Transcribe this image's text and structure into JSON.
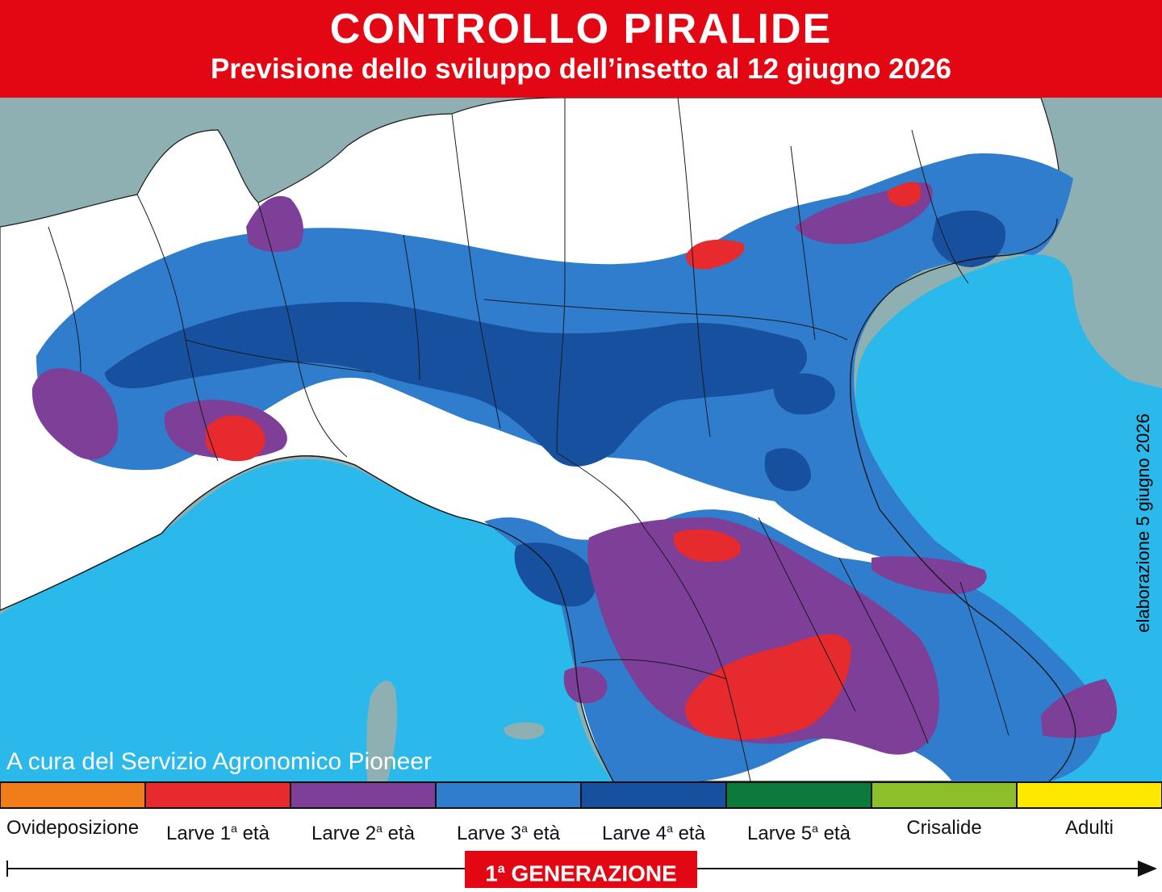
{
  "header": {
    "title": "CONTROLLO PIRALIDE",
    "subtitle": "Previsione dello sviluppo dell’insetto al 12 giugno 2026"
  },
  "map": {
    "colors": {
      "sea": "#2bb9ec",
      "foreign_land": "#8fb0b3",
      "no_data": "#ffffff",
      "borders": "#1a1a1a"
    }
  },
  "credit": "A cura del Servizio Agronomico Pioneer",
  "elaboration_note": "elaborazione 5 giugno 2026",
  "legend": [
    {
      "stage": "Ovideposizione",
      "ordinal": "",
      "suffix": "",
      "color": "#f07d19"
    },
    {
      "stage": "Larve 1",
      "ordinal": "a",
      "suffix": " età",
      "color": "#e62a2d"
    },
    {
      "stage": "Larve 2",
      "ordinal": "a",
      "suffix": " età",
      "color": "#7d3f98"
    },
    {
      "stage": "Larve 3",
      "ordinal": "a",
      "suffix": " età",
      "color": "#2f7dcc"
    },
    {
      "stage": "Larve 4",
      "ordinal": "a",
      "suffix": " età",
      "color": "#16509e"
    },
    {
      "stage": "Larve 5",
      "ordinal": "a",
      "suffix": " età",
      "color": "#0b7a3b"
    },
    {
      "stage": "Crisalide",
      "ordinal": "",
      "suffix": "",
      "color": "#8dbf2a"
    },
    {
      "stage": "Adulti",
      "ordinal": "",
      "suffix": "",
      "color": "#ffe800"
    }
  ],
  "generation": {
    "number": "1",
    "ordinal": "a",
    "label": " GENERAZIONE"
  }
}
